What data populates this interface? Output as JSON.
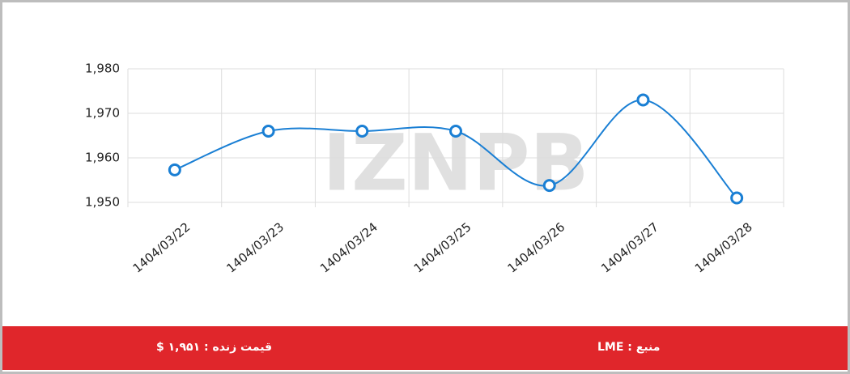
{
  "chart_data": {
    "type": "line",
    "watermark": "IZNPB",
    "categories": [
      "1404/03/22",
      "1404/03/23",
      "1404/03/24",
      "1404/03/25",
      "1404/03/26",
      "1404/03/27",
      "1404/03/28"
    ],
    "series": [
      {
        "color": "#1a7fd4",
        "values": [
          1957.3,
          1966,
          1966,
          1966,
          1953.8,
          1973,
          1951
        ]
      }
    ],
    "ylim": [
      1950,
      1980
    ],
    "yticks": [
      {
        "value": 1950,
        "label": "1,950"
      },
      {
        "value": 1960,
        "label": "1,960"
      },
      {
        "value": 1970,
        "label": "1,970"
      },
      {
        "value": 1980,
        "label": "1,980"
      }
    ],
    "grid": true
  },
  "footer": {
    "live_price": "قیمت زنده : ۱,۹۵۱ $",
    "source": "منبع : LME"
  }
}
